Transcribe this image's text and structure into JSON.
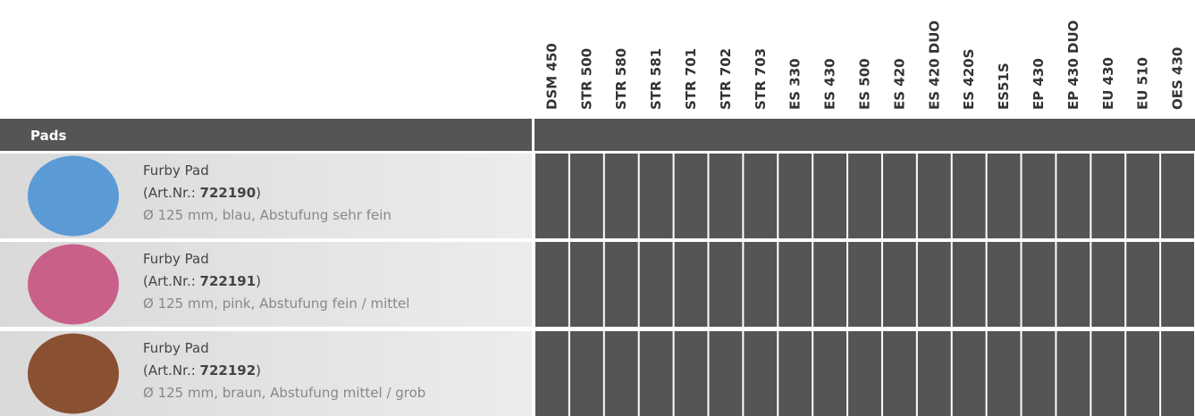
{
  "columns": [
    "DSM 450",
    "STR 500",
    "STR 580",
    "STR 581",
    "STR 701",
    "STR 702",
    "STR 703",
    "ES 330",
    "ES 430",
    "ES 500",
    "ES 420",
    "ES 420 DUO",
    "ES 420S",
    "ES51S",
    "EP 430",
    "EP 430 DUO",
    "EU 430",
    "EU 510",
    "OES 430"
  ],
  "section": "Pads",
  "rows": [
    {
      "name": "Furby Pad",
      "art_label": "(Art.Nr.:",
      "art_no": "722190",
      "art_close": ")",
      "description": "Ø 125 mm, blau, Abstufung sehr fein",
      "color": "#5b9bd5"
    },
    {
      "name": "Furby Pad",
      "art_label": "(Art.Nr.:",
      "art_no": "722191",
      "art_close": ")",
      "description": "Ø 125 mm, pink, Abstufung fein / mittel",
      "color": "#c8608a"
    },
    {
      "name": "Furby Pad",
      "art_label": "(Art.Nr.:",
      "art_no": "722192",
      "art_close": ")",
      "description": "Ø 125 mm, braun, Abstufung mittel / grob",
      "color": "#8a5032"
    }
  ]
}
